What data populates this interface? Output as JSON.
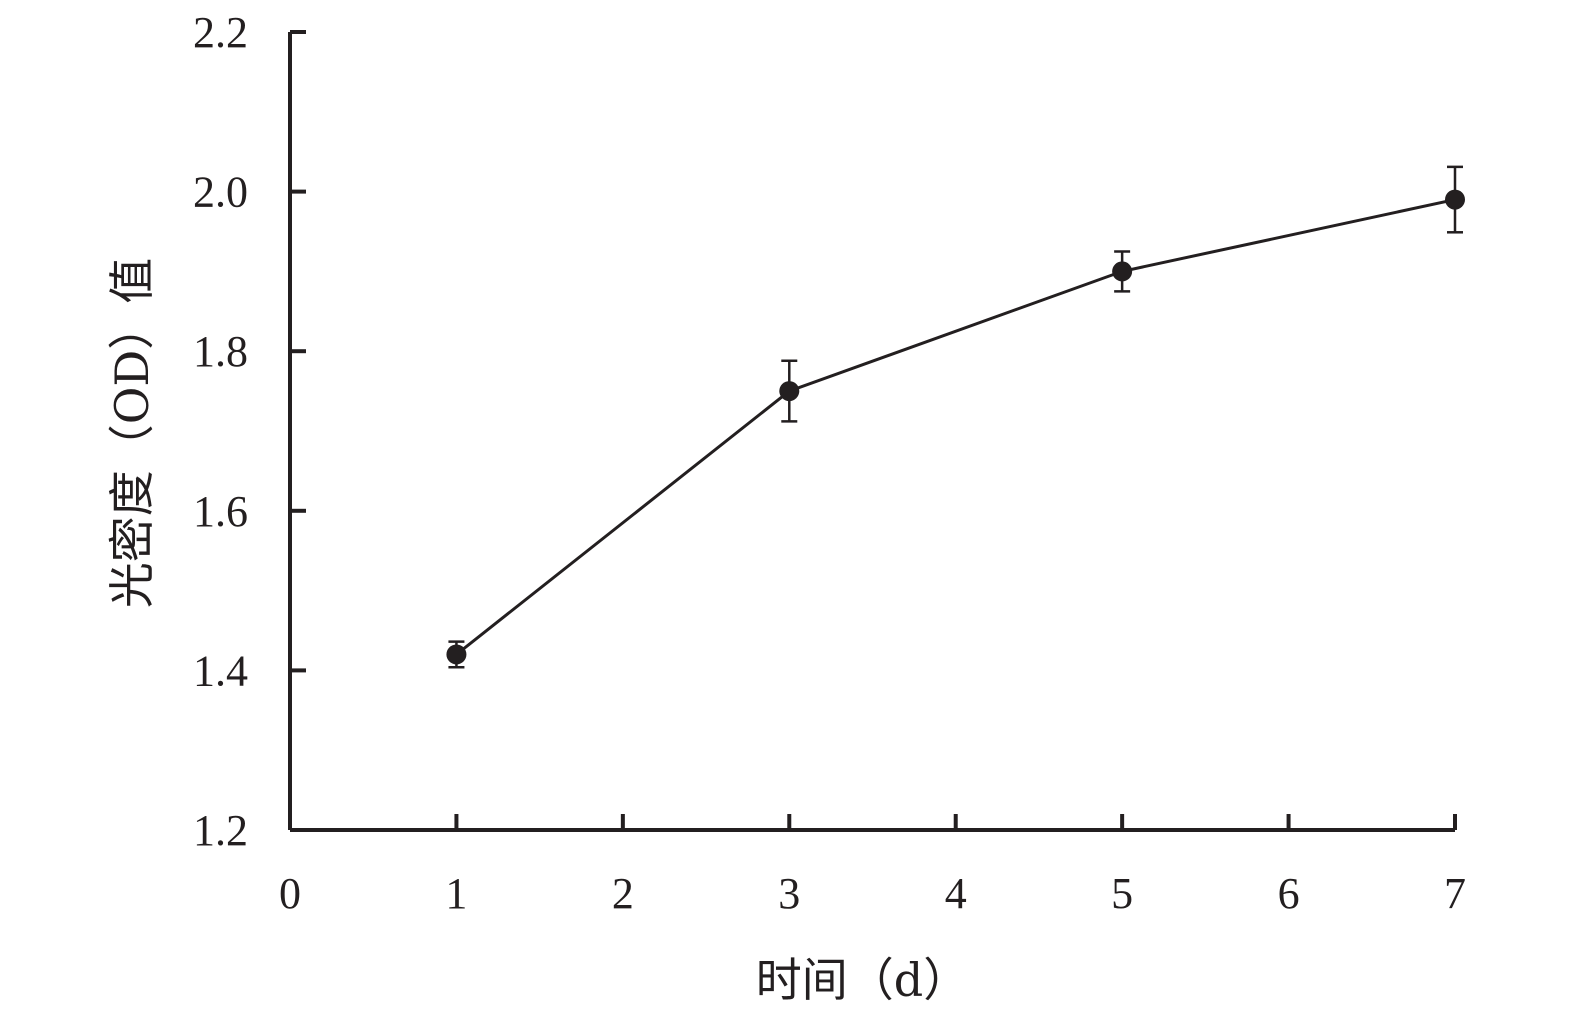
{
  "chart_data": {
    "type": "line",
    "xlabel": "时间（d）",
    "ylabel": "光密度（OD）值",
    "xlim": [
      0,
      7
    ],
    "ylim": [
      1.2,
      2.2
    ],
    "x_ticks": [
      0,
      1,
      2,
      3,
      4,
      5,
      6,
      7
    ],
    "x_tick_labels": [
      "0",
      "1",
      "2",
      "3",
      "4",
      "5",
      "6",
      "7"
    ],
    "y_ticks": [
      1.2,
      1.4,
      1.6,
      1.8,
      2.0,
      2.2
    ],
    "y_tick_labels": [
      "1.2",
      "1.4",
      "1.6",
      "1.8",
      "2.0",
      "2.2"
    ],
    "grid": false,
    "legend": "none",
    "series": [
      {
        "x": [
          1,
          3,
          5,
          7
        ],
        "y": [
          1.42,
          1.75,
          1.9,
          1.99
        ],
        "error": [
          0.016,
          0.038,
          0.025,
          0.041
        ],
        "marker": "circle",
        "color": "#231f20"
      }
    ]
  }
}
